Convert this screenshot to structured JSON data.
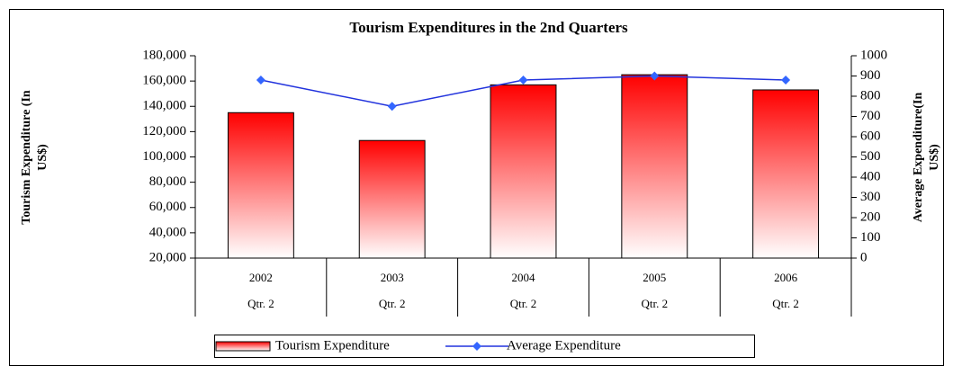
{
  "chart_data": {
    "type": "bar-line",
    "title": "Tourism Expenditures in the 2nd Quarters",
    "y_label": [
      "Tourism Expenditure (In",
      "US$)"
    ],
    "y2_label": [
      "Average Expenditure(In",
      "US$)"
    ],
    "categories": [
      "2002",
      "2003",
      "2004",
      "2005",
      "2006"
    ],
    "subcategories": [
      "Qtr. 2",
      "Qtr. 2",
      "Qtr. 2",
      "Qtr. 2",
      "Qtr. 2"
    ],
    "series": [
      {
        "name": "Tourism Expenditure",
        "type": "bar",
        "color": "#ff0000",
        "values": [
          135000,
          113000,
          157000,
          165000,
          153000
        ]
      },
      {
        "name": "Average Expenditure",
        "type": "line",
        "axis": "y2",
        "color": "#2233dd",
        "values": [
          880,
          750,
          880,
          900,
          880
        ]
      }
    ],
    "ylim": [
      20000,
      180000
    ],
    "yticks": [
      {
        "value": 20000,
        "label": "20,000"
      },
      {
        "value": 40000,
        "label": "40,000"
      },
      {
        "value": 60000,
        "label": "60,000"
      },
      {
        "value": 80000,
        "label": "80,000"
      },
      {
        "value": 100000,
        "label": "100,000"
      },
      {
        "value": 120000,
        "label": "120,000"
      },
      {
        "value": 140000,
        "label": "140,000"
      },
      {
        "value": 160000,
        "label": "160,000"
      },
      {
        "value": 180000,
        "label": "180,000"
      }
    ],
    "y2lim": [
      0,
      1000
    ],
    "y2ticks": [
      0,
      100,
      200,
      300,
      400,
      500,
      600,
      700,
      800,
      900,
      1000
    ],
    "legend": "bottom"
  }
}
